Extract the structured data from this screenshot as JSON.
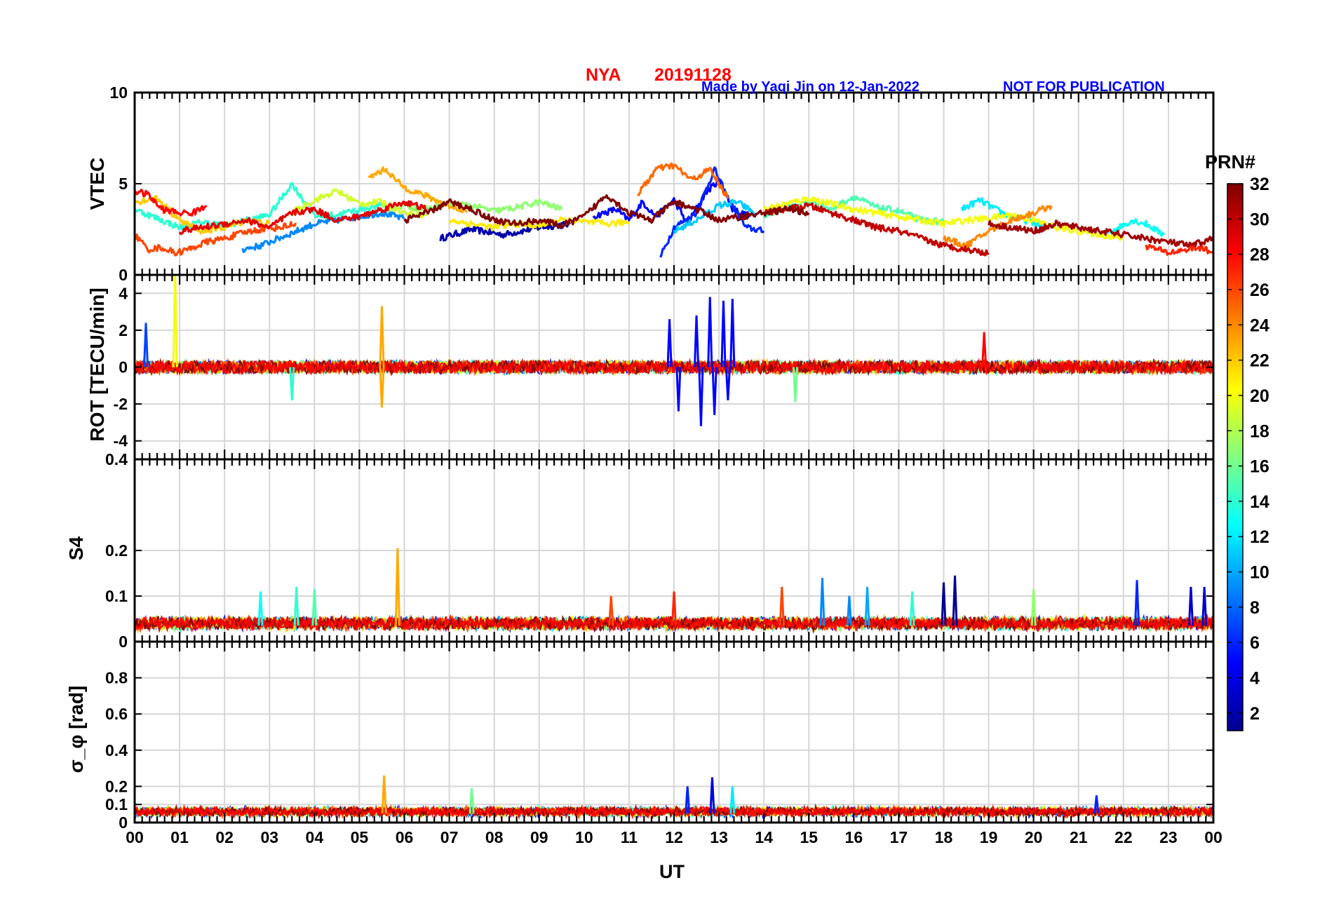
{
  "title": {
    "station": "NYA",
    "date": "20191128"
  },
  "credit": {
    "made_by": "Made by Yaqi Jin on 12-Jan-2022",
    "notice": "NOT FOR PUBLICATION"
  },
  "x_axis": {
    "label": "UT",
    "range": [
      0,
      24
    ],
    "ticks": [
      "00",
      "01",
      "02",
      "03",
      "04",
      "05",
      "06",
      "07",
      "08",
      "09",
      "10",
      "11",
      "12",
      "13",
      "14",
      "15",
      "16",
      "17",
      "18",
      "19",
      "20",
      "21",
      "22",
      "23",
      "00"
    ]
  },
  "colorbar": {
    "label": "PRN#",
    "range": [
      1,
      32
    ],
    "ticks": [
      "2",
      "4",
      "6",
      "8",
      "10",
      "12",
      "14",
      "16",
      "18",
      "20",
      "22",
      "24",
      "26",
      "28",
      "30",
      "32"
    ],
    "colors": [
      "#00008f",
      "#0000ff",
      "#0080ff",
      "#00ffff",
      "#80ff80",
      "#ffff00",
      "#ff8000",
      "#ff0000",
      "#800000"
    ]
  },
  "chart_data": [
    {
      "type": "line",
      "name": "vtec",
      "ylabel": "VTEC",
      "ylim": [
        0,
        10
      ],
      "yticks": [
        "0",
        "5",
        "10"
      ],
      "grid": true,
      "series": [
        {
          "prn": 2,
          "x": [
            6.8,
            7.5,
            8.2,
            9.0,
            9.7
          ],
          "y": [
            2.0,
            2.5,
            2.2,
            2.6,
            2.8
          ]
        },
        {
          "prn": 5,
          "x": [
            10.2,
            10.7,
            11.0,
            11.3,
            11.6,
            12.0,
            12.3,
            12.7,
            13.0,
            13.3,
            13.7
          ],
          "y": [
            3.2,
            3.6,
            3.0,
            4.0,
            3.2,
            4.1,
            2.8,
            4.5,
            5.2,
            3.6,
            3.2
          ]
        },
        {
          "prn": 6,
          "x": [
            11.7,
            12.0,
            12.5,
            12.9,
            13.2,
            13.6,
            14.0
          ],
          "y": [
            1.0,
            2.6,
            3.4,
            5.8,
            4.2,
            2.6,
            2.4
          ]
        },
        {
          "prn": 9,
          "x": [
            2.4,
            2.8,
            3.2,
            3.6,
            4.0,
            4.5,
            5.0,
            5.5,
            6.0
          ],
          "y": [
            1.4,
            1.6,
            2.0,
            2.4,
            2.8,
            3.0,
            3.2,
            3.4,
            3.1
          ]
        },
        {
          "prn": 11,
          "x": [
            12.0,
            12.5,
            13.0,
            13.4,
            13.8
          ],
          "y": [
            2.4,
            3.0,
            3.8,
            4.0,
            3.4
          ]
        },
        {
          "prn": 12,
          "x": [
            18.4,
            18.8,
            19.3,
            19.8,
            20.2
          ],
          "y": [
            3.6,
            4.1,
            3.4,
            3.0,
            2.7
          ]
        },
        {
          "prn": 13,
          "x": [
            21.5,
            21.9,
            22.2,
            22.5,
            22.9
          ],
          "y": [
            2.2,
            2.6,
            3.0,
            2.8,
            2.2
          ]
        },
        {
          "prn": 14,
          "x": [
            0.0,
            0.5,
            1.0,
            1.5,
            2.0,
            2.5,
            3.0,
            3.5,
            4.0,
            4.5,
            5.0,
            5.5
          ],
          "y": [
            3.6,
            3.1,
            2.6,
            2.9,
            2.7,
            3.0,
            3.3,
            5.0,
            3.2,
            3.3,
            3.6,
            3.8
          ]
        },
        {
          "prn": 15,
          "x": [
            14.0,
            14.5,
            15.0,
            15.5,
            16.0,
            16.5,
            17.0,
            17.5,
            18.0
          ],
          "y": [
            3.2,
            3.7,
            4.0,
            3.6,
            4.3,
            3.7,
            3.5,
            3.0,
            2.9
          ]
        },
        {
          "prn": 17,
          "x": [
            5.5,
            6.0,
            6.5,
            7.0,
            7.5,
            8.0,
            8.5,
            9.0,
            9.5
          ],
          "y": [
            3.6,
            3.8,
            3.6,
            3.9,
            3.8,
            3.5,
            3.7,
            4.0,
            3.6
          ]
        },
        {
          "prn": 19,
          "x": [
            3.5,
            4.0,
            4.5,
            5.0,
            5.5,
            6.0,
            6.5
          ],
          "y": [
            3.4,
            4.1,
            4.6,
            3.9,
            4.0,
            3.4,
            3.3
          ]
        },
        {
          "prn": 20,
          "x": [
            14.0,
            14.5,
            15.0,
            15.5,
            16.0,
            16.5,
            17.0,
            17.5,
            18.0,
            18.5,
            19.0,
            19.5,
            20.0,
            20.5,
            21.0,
            21.5,
            22.0
          ],
          "y": [
            3.6,
            3.9,
            4.2,
            3.9,
            3.6,
            3.4,
            3.2,
            3.0,
            2.8,
            3.0,
            3.1,
            3.3,
            3.0,
            2.6,
            2.4,
            2.2,
            2.0
          ]
        },
        {
          "prn": 21,
          "x": [
            7.0,
            7.5,
            8.0,
            8.5,
            9.0,
            9.5,
            10.0,
            10.5,
            11.0
          ],
          "y": [
            3.0,
            2.8,
            2.6,
            2.8,
            2.7,
            3.0,
            2.9,
            2.8,
            2.9
          ]
        },
        {
          "prn": 22,
          "x": [
            0.0,
            0.5,
            1.0,
            1.5,
            2.0,
            2.5,
            3.0
          ],
          "y": [
            4.0,
            4.2,
            3.0,
            2.4,
            2.6,
            3.0,
            2.8
          ]
        },
        {
          "prn": 23,
          "x": [
            5.2,
            5.4,
            5.6,
            5.8,
            6.0,
            6.3,
            6.6,
            7.0,
            7.4
          ],
          "y": [
            5.3,
            5.6,
            5.8,
            5.2,
            4.8,
            4.5,
            4.2,
            3.8,
            3.5
          ]
        },
        {
          "prn": 24,
          "x": [
            18.0,
            18.5,
            19.0,
            19.5,
            20.0,
            20.4
          ],
          "y": [
            2.0,
            1.6,
            2.4,
            3.0,
            3.4,
            3.8
          ]
        },
        {
          "prn": 25,
          "x": [
            11.2,
            11.6,
            12.0,
            12.4,
            12.8,
            13.2
          ],
          "y": [
            4.4,
            5.8,
            6.0,
            5.2,
            5.8,
            4.2
          ]
        },
        {
          "prn": 26,
          "x": [
            0.0,
            0.3,
            0.6,
            0.9,
            1.2,
            1.6,
            2.0,
            2.4,
            2.8,
            3.2,
            3.6
          ],
          "y": [
            2.2,
            1.4,
            1.5,
            1.2,
            1.4,
            1.8,
            2.0,
            2.3,
            2.5,
            2.6,
            2.8
          ]
        },
        {
          "prn": 27,
          "x": [
            22.5,
            23.0,
            23.4,
            23.7,
            24.0
          ],
          "y": [
            1.6,
            1.2,
            1.4,
            1.5,
            1.2
          ]
        },
        {
          "prn": 28,
          "x": [
            0.0,
            0.3,
            0.6,
            1.0,
            1.3,
            1.6
          ],
          "y": [
            4.6,
            4.4,
            3.6,
            3.4,
            3.4,
            3.8
          ]
        },
        {
          "prn": 29,
          "x": [
            1.0,
            1.5,
            2.0,
            2.5,
            3.0,
            3.5,
            4.0,
            4.5,
            5.0,
            5.5,
            6.0,
            6.5
          ],
          "y": [
            2.4,
            2.6,
            2.8,
            3.0,
            2.6,
            3.4,
            3.6,
            3.0,
            3.2,
            3.6,
            4.0,
            3.6
          ]
        },
        {
          "prn": 30,
          "x": [
            14.0,
            14.5,
            15.0,
            15.5,
            16.0,
            16.5,
            17.0,
            17.5,
            18.0,
            18.5,
            19.0
          ],
          "y": [
            3.4,
            3.6,
            3.8,
            3.4,
            3.0,
            2.6,
            2.4,
            2.0,
            1.6,
            1.4,
            1.2
          ]
        },
        {
          "prn": 31,
          "x": [
            19.0,
            19.5,
            20.0,
            20.5,
            21.0,
            21.5,
            22.0,
            22.5,
            23.0,
            23.5,
            24.0
          ],
          "y": [
            2.8,
            2.6,
            2.4,
            2.8,
            2.6,
            2.4,
            2.2,
            2.0,
            1.8,
            1.6,
            2.0
          ]
        },
        {
          "prn": 32,
          "x": [
            6.0,
            6.5,
            7.0,
            7.5,
            8.0,
            8.5,
            9.0,
            9.5,
            10.0,
            10.5,
            11.0,
            11.5,
            12.0,
            12.5,
            13.0,
            13.5,
            14.0,
            14.5,
            15.0
          ],
          "y": [
            3.0,
            3.4,
            4.0,
            3.6,
            3.0,
            2.8,
            3.0,
            2.7,
            3.2,
            4.4,
            3.4,
            3.0,
            4.0,
            3.6,
            3.0,
            3.2,
            3.4,
            3.6,
            3.4
          ]
        }
      ]
    },
    {
      "type": "line",
      "name": "rot",
      "ylabel": "ROT [TECU/min]",
      "ylim": [
        -5,
        5
      ],
      "yticks": [
        "-4",
        "-2",
        "0",
        "2",
        "4"
      ],
      "grid": true,
      "baseline_noise_amplitude": 0.35,
      "spikes": [
        {
          "prn": 20,
          "x": 0.9,
          "y": 5.0
        },
        {
          "prn": 7,
          "x": 0.25,
          "y": 2.4
        },
        {
          "prn": 23,
          "x": 5.5,
          "y": 3.3
        },
        {
          "prn": 23,
          "x": 5.5,
          "y": -2.2
        },
        {
          "prn": 14,
          "x": 3.5,
          "y": -1.8
        },
        {
          "prn": 28,
          "x": 18.9,
          "y": 1.9
        },
        {
          "prn": 16,
          "x": 14.7,
          "y": -1.9
        },
        {
          "prn": 5,
          "x": 11.9,
          "y": 2.6
        },
        {
          "prn": 5,
          "x": 12.1,
          "y": -2.4
        },
        {
          "prn": 5,
          "x": 12.5,
          "y": 2.8
        },
        {
          "prn": 5,
          "x": 12.6,
          "y": -3.2
        },
        {
          "prn": 5,
          "x": 12.8,
          "y": 3.8
        },
        {
          "prn": 5,
          "x": 12.9,
          "y": -2.6
        },
        {
          "prn": 5,
          "x": 13.1,
          "y": 3.6
        },
        {
          "prn": 5,
          "x": 13.3,
          "y": 3.7
        },
        {
          "prn": 5,
          "x": 13.2,
          "y": -1.8
        }
      ]
    },
    {
      "type": "line",
      "name": "s4",
      "ylabel": "S4",
      "ylim": [
        0,
        0.4
      ],
      "yticks": [
        "0",
        "0.1",
        "0.2",
        "0.4"
      ],
      "grid": true,
      "baseline": 0.035,
      "spikes": [
        {
          "prn": 23,
          "x": 5.85,
          "y": 0.205
        },
        {
          "prn": 13,
          "x": 2.8,
          "y": 0.11
        },
        {
          "prn": 14,
          "x": 3.6,
          "y": 0.12
        },
        {
          "prn": 15,
          "x": 4.0,
          "y": 0.115
        },
        {
          "prn": 26,
          "x": 10.6,
          "y": 0.1
        },
        {
          "prn": 27,
          "x": 12.0,
          "y": 0.11
        },
        {
          "prn": 26,
          "x": 14.4,
          "y": 0.12
        },
        {
          "prn": 9,
          "x": 15.3,
          "y": 0.14
        },
        {
          "prn": 9,
          "x": 15.9,
          "y": 0.1
        },
        {
          "prn": 10,
          "x": 16.3,
          "y": 0.12
        },
        {
          "prn": 14,
          "x": 17.3,
          "y": 0.11
        },
        {
          "prn": 1,
          "x": 18.0,
          "y": 0.13
        },
        {
          "prn": 1,
          "x": 18.25,
          "y": 0.145
        },
        {
          "prn": 17,
          "x": 20.0,
          "y": 0.115
        },
        {
          "prn": 6,
          "x": 22.3,
          "y": 0.135
        },
        {
          "prn": 3,
          "x": 23.5,
          "y": 0.12
        },
        {
          "prn": 3,
          "x": 23.8,
          "y": 0.12
        }
      ]
    },
    {
      "type": "line",
      "name": "sigma_phi",
      "ylabel": "σ_φ [rad]",
      "ylim": [
        0,
        1
      ],
      "yticks": [
        "0",
        "0.1",
        "0.2",
        "0.4",
        "0.6",
        "0.8"
      ],
      "grid": true,
      "baseline": 0.05,
      "spikes": [
        {
          "prn": 23,
          "x": 5.55,
          "y": 0.26
        },
        {
          "prn": 16,
          "x": 7.5,
          "y": 0.19
        },
        {
          "prn": 6,
          "x": 12.3,
          "y": 0.2
        },
        {
          "prn": 4,
          "x": 12.85,
          "y": 0.25
        },
        {
          "prn": 12,
          "x": 13.3,
          "y": 0.2
        },
        {
          "prn": 6,
          "x": 21.4,
          "y": 0.15
        }
      ]
    }
  ]
}
